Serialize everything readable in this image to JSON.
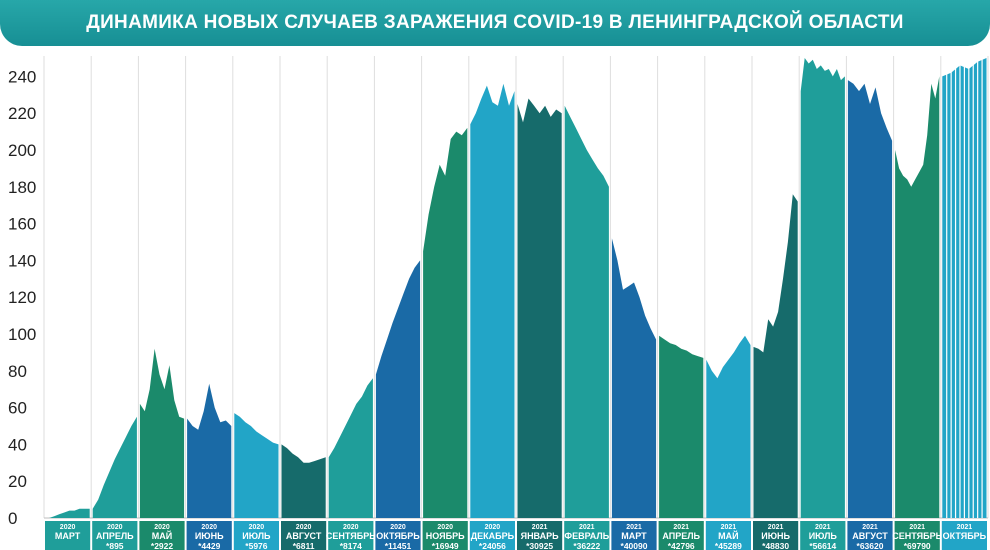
{
  "title": "ДИНАМИКА НОВЫХ СЛУЧАЕВ ЗАРАЖЕНИЯ COVID-19 В ЛЕНИНГРАДСКОЙ ОБЛАСТИ",
  "chart_data": {
    "type": "area",
    "title": "ДИНАМИКА НОВЫХ СЛУЧАЕВ ЗАРАЖЕНИЯ COVID-19 В ЛЕНИНГРАДСКОЙ ОБЛАСТИ",
    "ylim": [
      0,
      250
    ],
    "yticks": [
      0,
      20,
      40,
      60,
      80,
      100,
      120,
      140,
      160,
      180,
      200,
      220,
      240
    ],
    "grid": "vertical",
    "months": [
      {
        "year": "2020",
        "month": "МАРТ",
        "total": "",
        "color": "#1f9e9a",
        "values": [
          0,
          0,
          1,
          2,
          3,
          4,
          4,
          5,
          5,
          5
        ]
      },
      {
        "year": "2020",
        "month": "АПРЕЛЬ",
        "total": "*895",
        "color": "#1f9e9a",
        "values": [
          5,
          10,
          18,
          25,
          32,
          38,
          44,
          50,
          55
        ]
      },
      {
        "year": "2020",
        "month": "МАЙ",
        "total": "*2922",
        "color": "#1b8a6b",
        "values": [
          62,
          58,
          70,
          92,
          78,
          70,
          83,
          64,
          55,
          54
        ]
      },
      {
        "year": "2020",
        "month": "ИЮНЬ",
        "total": "*4429",
        "color": "#1a6aa6",
        "values": [
          54,
          50,
          48,
          58,
          73,
          60,
          52,
          53,
          50
        ]
      },
      {
        "year": "2020",
        "month": "ИЮЛЬ",
        "total": "*5976",
        "color": "#22a5c7",
        "values": [
          57,
          55,
          52,
          50,
          47,
          45,
          43,
          41,
          40
        ]
      },
      {
        "year": "2020",
        "month": "АВГУСТ",
        "total": "*6811",
        "color": "#166b6b",
        "values": [
          40,
          38,
          35,
          33,
          30,
          30,
          31,
          32,
          33
        ]
      },
      {
        "year": "2020",
        "month": "СЕНТЯБРЬ",
        "total": "*8174",
        "color": "#1f9e9a",
        "values": [
          33,
          38,
          44,
          50,
          56,
          62,
          66,
          72,
          76
        ]
      },
      {
        "year": "2020",
        "month": "ОКТЯБРЬ",
        "total": "*11451",
        "color": "#1a6aa6",
        "values": [
          78,
          88,
          97,
          106,
          114,
          122,
          130,
          136,
          140
        ]
      },
      {
        "year": "2020",
        "month": "НОЯБРЬ",
        "total": "*16949",
        "color": "#1b8a6b",
        "values": [
          145,
          165,
          180,
          192,
          186,
          206,
          210,
          208,
          212
        ]
      },
      {
        "year": "2020",
        "month": "ДЕКАБРЬ",
        "total": "*24056",
        "color": "#22a5c7",
        "values": [
          214,
          220,
          228,
          235,
          226,
          224,
          236,
          224,
          232
        ]
      },
      {
        "year": "2021",
        "month": "ЯНВАРЬ",
        "total": "*30925",
        "color": "#166b6b",
        "values": [
          225,
          215,
          228,
          224,
          220,
          224,
          218,
          222,
          220
        ]
      },
      {
        "year": "2021",
        "month": "ФЕВРАЛЬ",
        "total": "*36222",
        "color": "#1f9e9a",
        "values": [
          224,
          218,
          212,
          206,
          200,
          195,
          190,
          186,
          180
        ]
      },
      {
        "year": "2021",
        "month": "МАРТ",
        "total": "*40090",
        "color": "#1a6aa6",
        "values": [
          152,
          140,
          124,
          126,
          128,
          120,
          110,
          103,
          97
        ]
      },
      {
        "year": "2021",
        "month": "АПРЕЛЬ",
        "total": "*42796",
        "color": "#1b8a6b",
        "values": [
          99,
          97,
          95,
          94,
          92,
          91,
          89,
          88,
          87
        ]
      },
      {
        "year": "2021",
        "month": "МАЙ",
        "total": "*45289",
        "color": "#22a5c7",
        "values": [
          86,
          80,
          76,
          82,
          86,
          90,
          95,
          99,
          94
        ]
      },
      {
        "year": "2021",
        "month": "ИЮНЬ",
        "total": "*48830",
        "color": "#166b6b",
        "values": [
          93,
          92,
          90,
          108,
          104,
          112,
          130,
          150,
          176,
          172
        ]
      },
      {
        "year": "2021",
        "month": "ИЮЛЬ",
        "total": "*56614",
        "color": "#1f9e9a",
        "values": [
          232,
          250,
          247,
          249,
          244,
          246,
          243,
          244,
          240,
          244,
          238,
          240
        ]
      },
      {
        "year": "2021",
        "month": "АВГУСТ",
        "total": "*63620",
        "color": "#1a6aa6",
        "values": [
          238,
          236,
          232,
          236,
          225,
          234,
          220,
          212,
          205
        ]
      },
      {
        "year": "2021",
        "month": "СЕНТЯБРЬ",
        "total": "*69790",
        "color": "#1b8a6b",
        "values": [
          200,
          190,
          186,
          184,
          180,
          184,
          188,
          192,
          208,
          236,
          228,
          240
        ]
      },
      {
        "year": "2021",
        "month": "ОКТЯБРЬ",
        "total": "",
        "color": "#22a5c7",
        "values": [
          240,
          242,
          246,
          244,
          248,
          250
        ]
      }
    ]
  }
}
